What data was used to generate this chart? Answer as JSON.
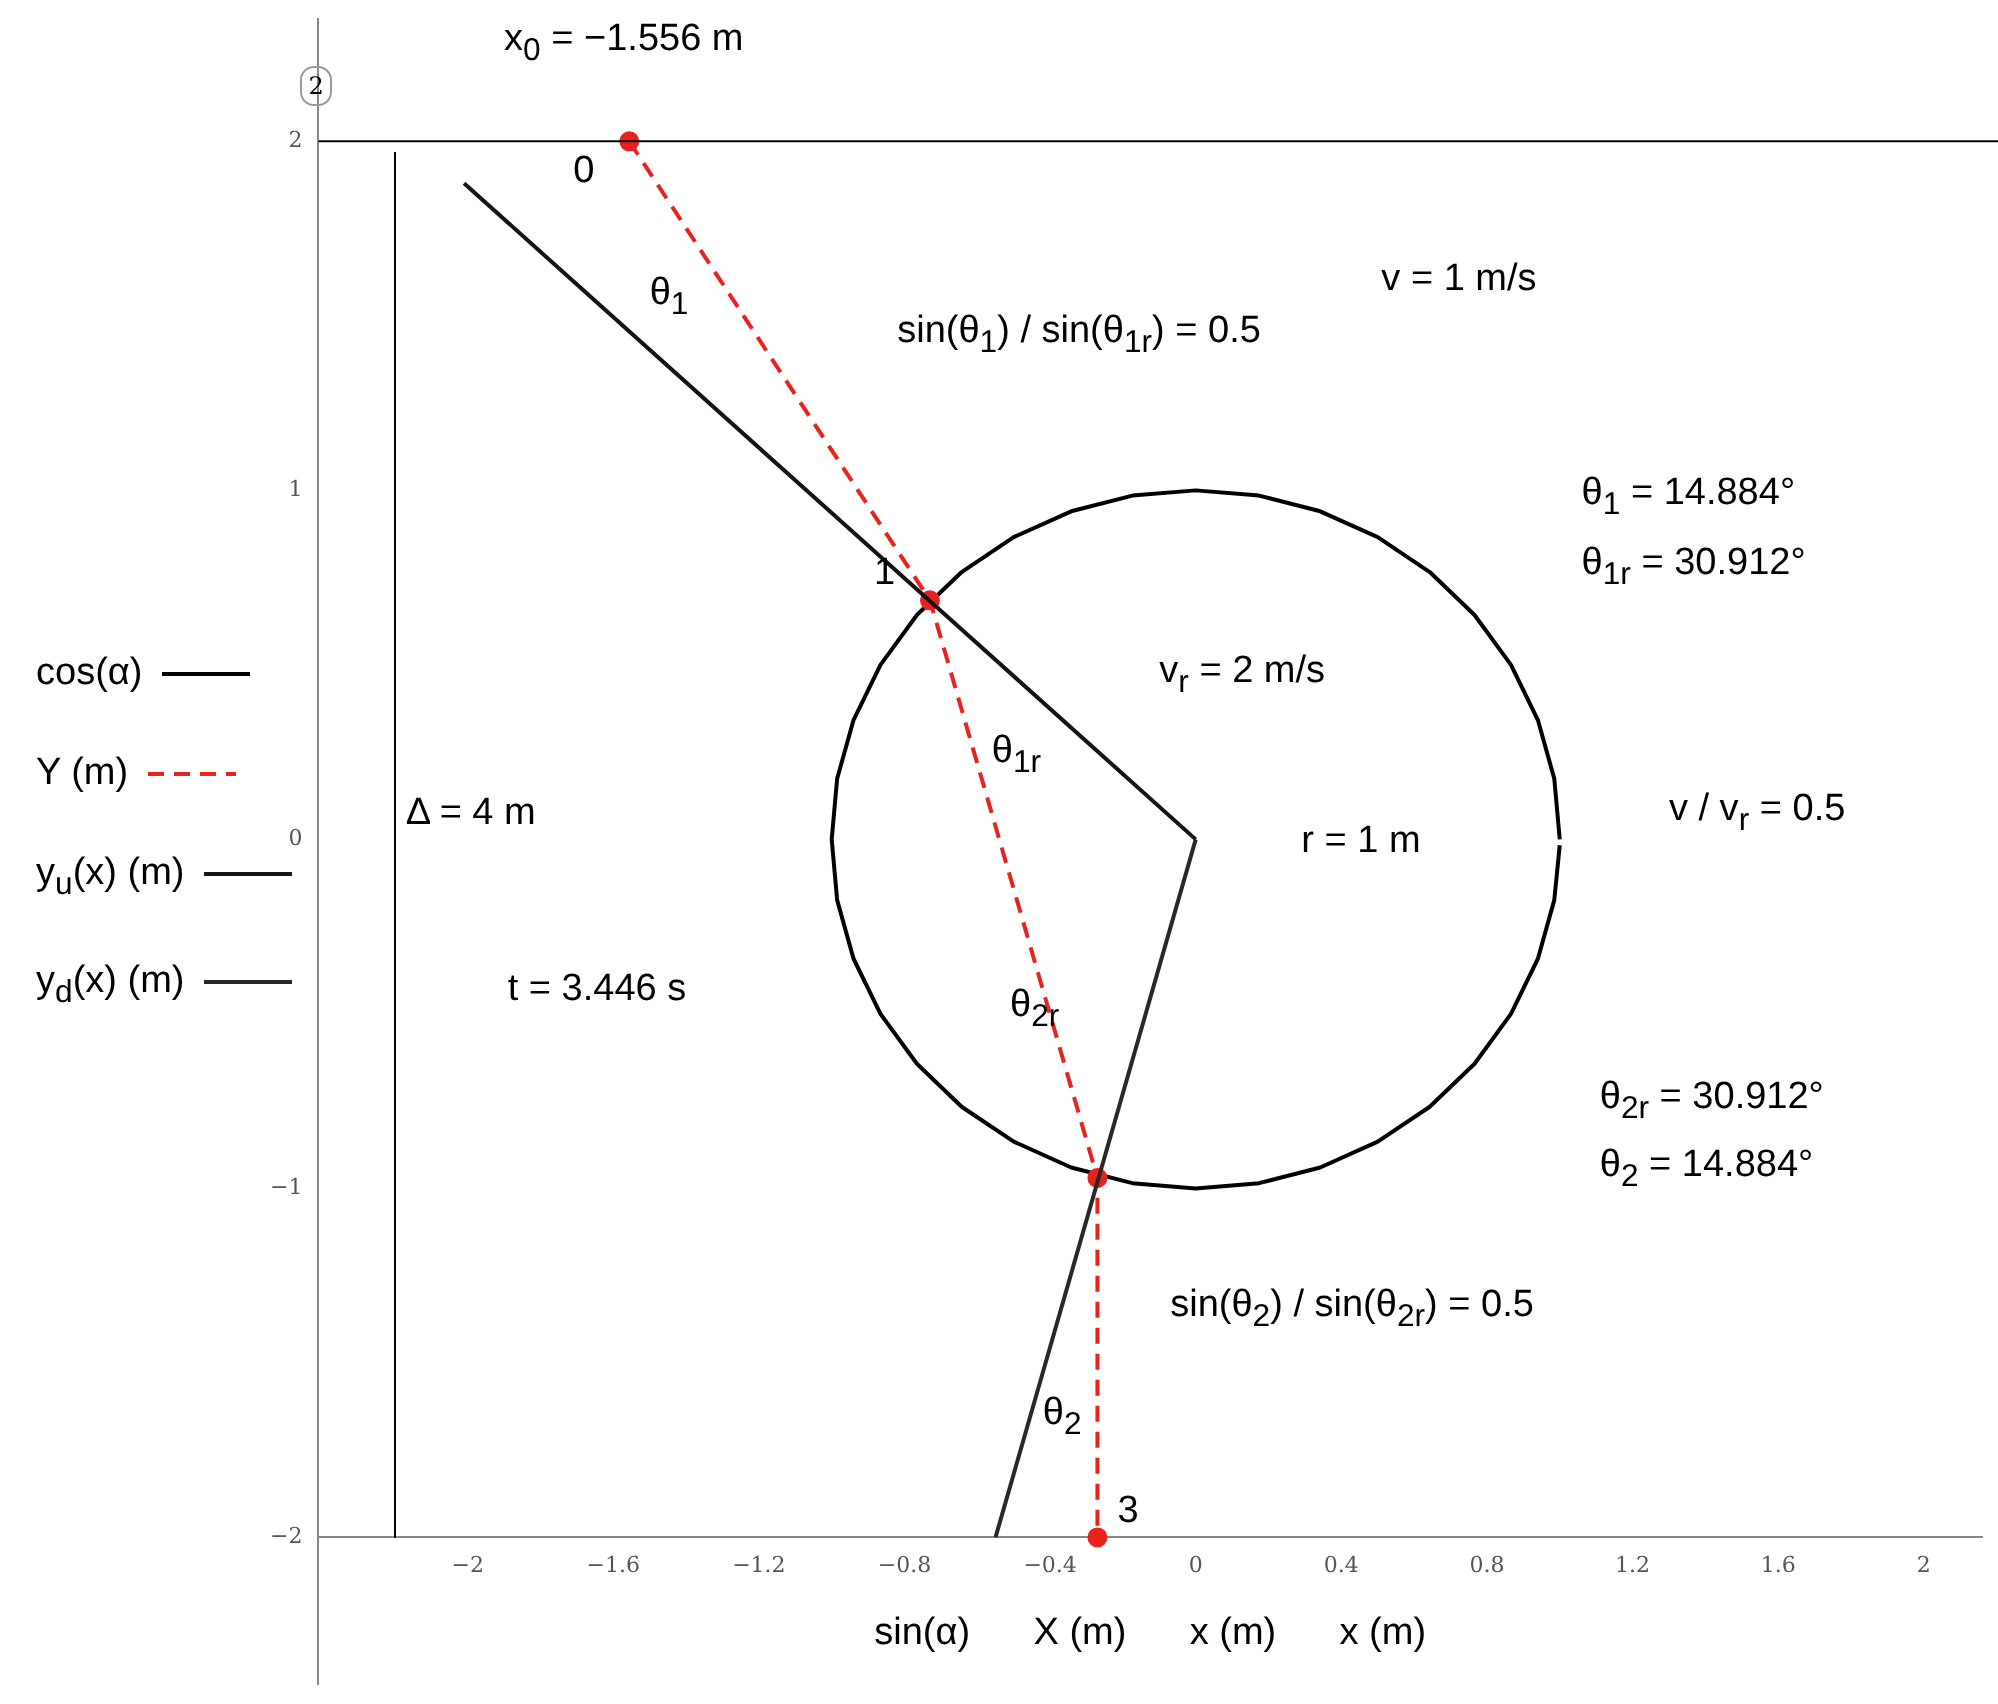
{
  "chart_data": {
    "type": "line",
    "xlabel": "sin(α)      X (m)      x (m)      x (m)",
    "xlim": [
      -2.41,
      2.16
    ],
    "ylim": [
      -2.42,
      2.35
    ],
    "xticks": [
      -2,
      -1.6,
      -1.2,
      -0.8,
      -0.4,
      0,
      0.4,
      0.8,
      1.2,
      1.6,
      2
    ],
    "yticks": [
      -2,
      -1,
      0,
      1,
      2
    ],
    "grid": false,
    "legend": "left",
    "series": [
      {
        "name": "cos(α)",
        "color": "#000000",
        "marker": "none",
        "line_style": "solid",
        "x": [
          1,
          0.985,
          0.94,
          0.866,
          0.766,
          0.643,
          0.5,
          0.342,
          0.174,
          0,
          -0.174,
          -0.342,
          -0.5,
          -0.643,
          -0.766,
          -0.866,
          -0.94,
          -0.985,
          -1,
          -0.985,
          -0.94,
          -0.866,
          -0.766,
          -0.643,
          -0.5,
          -0.342,
          -0.174,
          0,
          0.174,
          0.342,
          0.5,
          0.643,
          0.766,
          0.866,
          0.94,
          0.985,
          1.0
        ],
        "values": [
          0,
          0.174,
          0.342,
          0.5,
          0.643,
          0.766,
          0.866,
          0.94,
          0.985,
          1,
          0.985,
          0.94,
          0.866,
          0.766,
          0.643,
          0.5,
          0.342,
          0.174,
          0,
          -0.174,
          -0.342,
          -0.5,
          -0.643,
          -0.766,
          -0.866,
          -0.94,
          -0.985,
          -1,
          -0.985,
          -0.94,
          -0.866,
          -0.766,
          -0.643,
          -0.5,
          -0.342,
          -0.174,
          -0.017
        ]
      },
      {
        "name": "Y (m)",
        "color": "#e8231e",
        "marker": "circle",
        "line_style": "dashed",
        "x": [
          -1.556,
          -0.73,
          -0.27,
          -0.27
        ],
        "values": [
          2,
          0.685,
          -0.97,
          -2
        ]
      },
      {
        "name": "y$_{u}$(x) (m)",
        "color": "#141414",
        "marker": "none",
        "line_style": "solid",
        "x": [
          -2.01,
          0
        ],
        "values": [
          1.88,
          0
        ]
      },
      {
        "name": "y$_{d}$(x) (m)",
        "color": "#282828",
        "marker": "none",
        "line_style": "solid",
        "x": [
          -0.55,
          0
        ],
        "values": [
          -2,
          0
        ]
      }
    ],
    "ref_lines": [
      {
        "axis": "y",
        "value": 2,
        "label": "2",
        "color": "#000000"
      }
    ],
    "annotations": [
      {
        "text": "0",
        "x": -1.556,
        "y": 2
      },
      {
        "text": "1",
        "x": -0.73,
        "y": 0.685
      },
      {
        "text": "3",
        "x": -0.27,
        "y": -2
      },
      "x$_{0}$ = −1.556 m",
      "θ$_{1}$",
      "sin(θ$_{1}$) / sin(θ$_{1r}$) = 0.5",
      "v = 1 m/s",
      "θ$_{1}$ = 14.884°",
      "θ$_{1r}$ = 30.912°",
      "v$_{r}$ = 2 m/s",
      "θ$_{1r}$",
      "r = 1 m",
      "v / v$_{r}$ = 0.5",
      "Δ = 4 m",
      "t = 3.446 s",
      "θ$_{2r}$",
      "θ$_{2r}$ = 30.912°",
      "θ$_{2}$ = 14.884°",
      "sin(θ$_{2}$) / sin(θ$_{2r}$) = 0.5",
      "θ$_{2}$"
    ]
  }
}
